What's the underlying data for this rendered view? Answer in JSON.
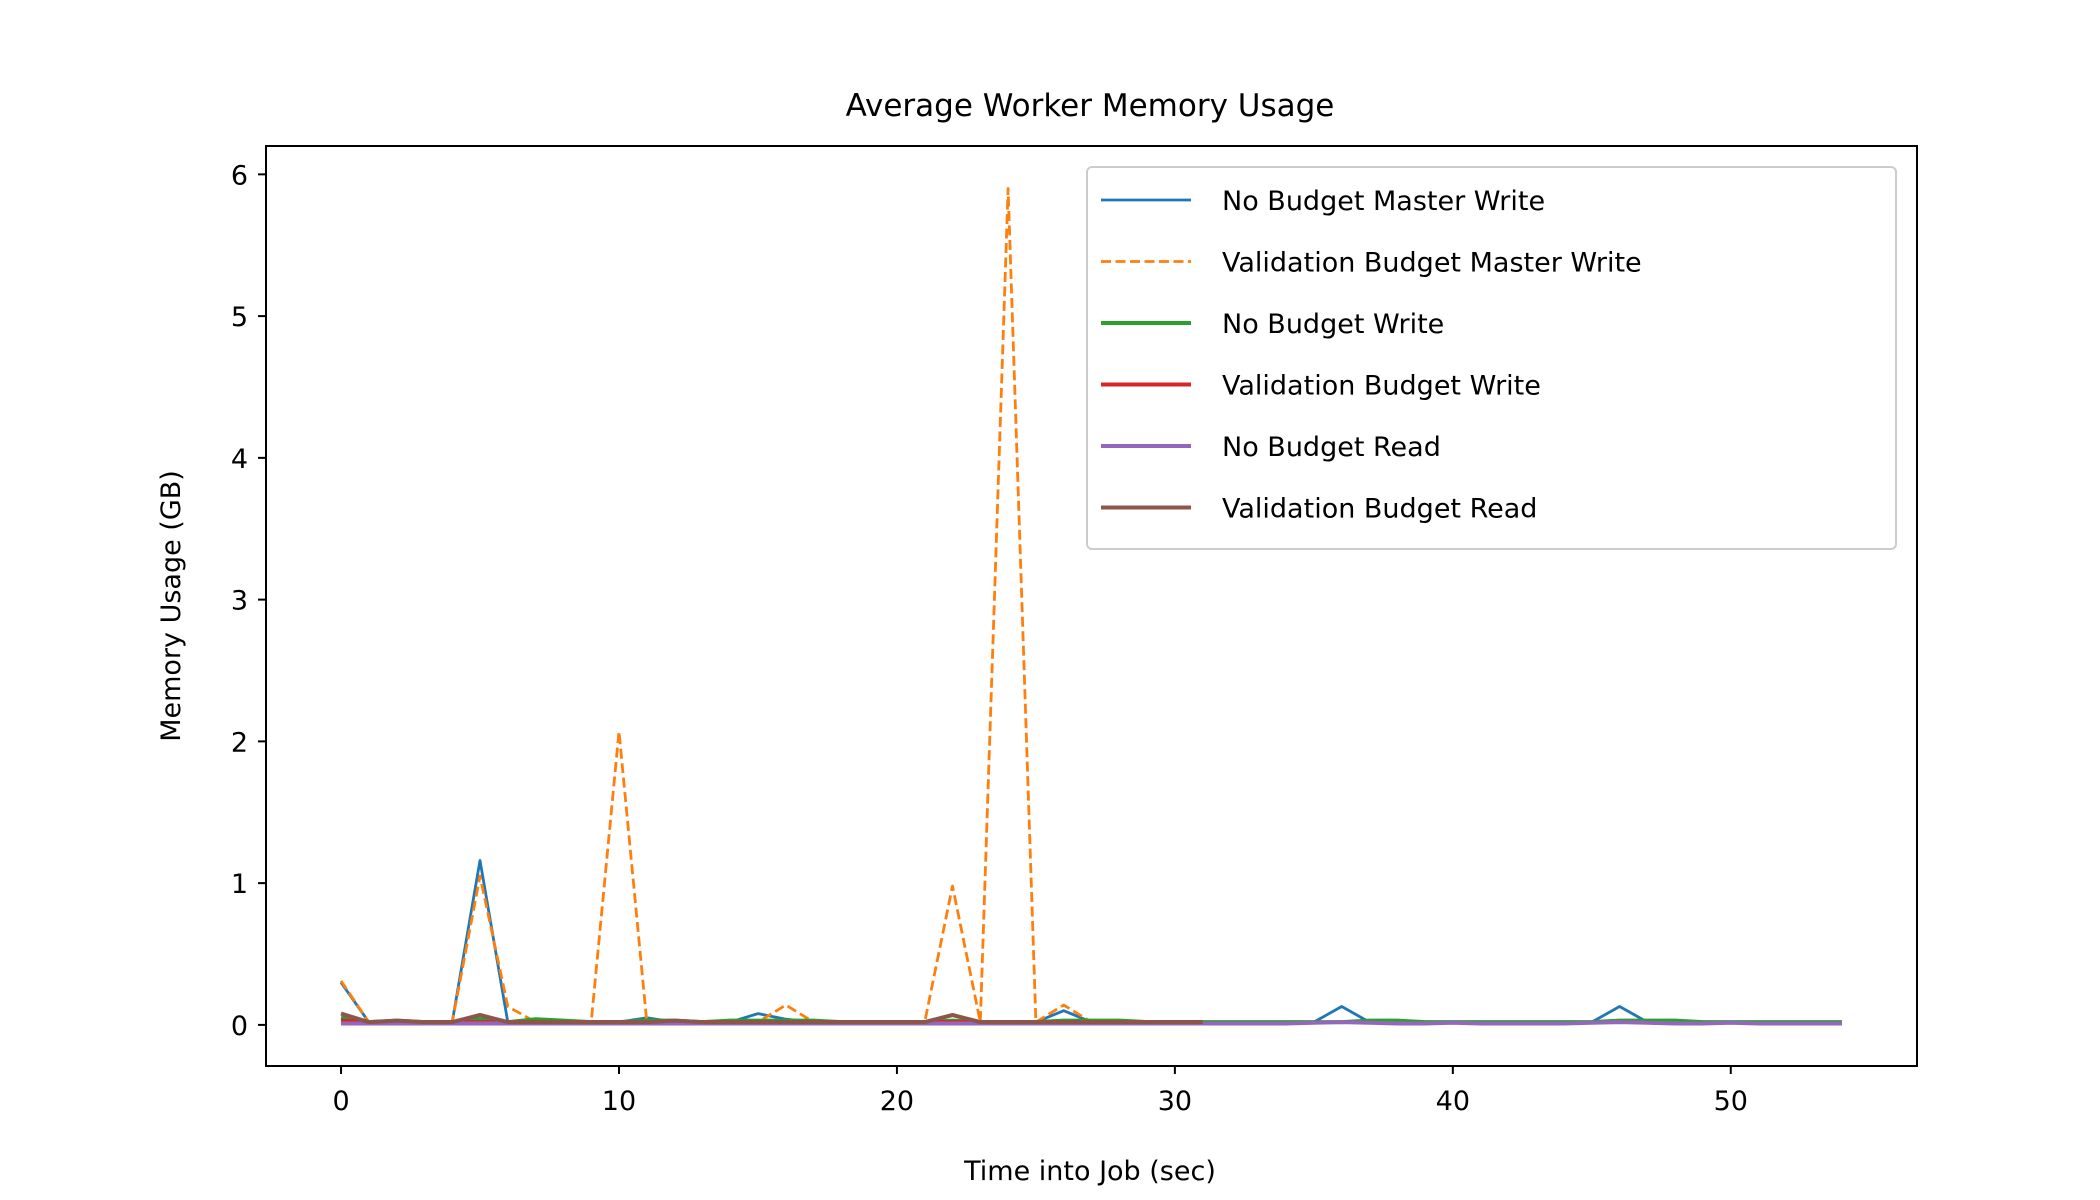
{
  "chart_data": {
    "type": "line",
    "title": "Average Worker Memory Usage",
    "xlabel": "Time into Job (sec)",
    "ylabel": "Memory Usage (GB)",
    "xlim": [
      -2.7,
      56.7
    ],
    "ylim": [
      -0.29,
      6.2
    ],
    "xticks": [
      0,
      10,
      20,
      30,
      40,
      50
    ],
    "yticks": [
      0,
      1,
      2,
      3,
      4,
      5,
      6
    ],
    "grid": false,
    "legend_position": "upper right",
    "series": [
      {
        "name": "No Budget Master Write",
        "color": "#1f77b4",
        "dash": "solid",
        "x": [
          0,
          1,
          2,
          3,
          4,
          5,
          6,
          7,
          8,
          9,
          10,
          11,
          12,
          13,
          14,
          15,
          16,
          17,
          18,
          19,
          20,
          21,
          22,
          23,
          24,
          25,
          26,
          27,
          28,
          29,
          30,
          31,
          32,
          33,
          34,
          35,
          36,
          37,
          38,
          39,
          40,
          41,
          42,
          43,
          44,
          45,
          46,
          47,
          48,
          49,
          50,
          51,
          52,
          53,
          54
        ],
        "y": [
          0.3,
          0.02,
          0.02,
          0.02,
          0.02,
          1.16,
          0.02,
          0.02,
          0.02,
          0.02,
          0.02,
          0.05,
          0.02,
          0.02,
          0.02,
          0.08,
          0.04,
          0.02,
          0.02,
          0.02,
          0.02,
          0.02,
          0.02,
          0.02,
          0.02,
          0.02,
          0.1,
          0.02,
          0.02,
          0.02,
          0.02,
          0.02,
          0.02,
          0.02,
          0.02,
          0.02,
          0.13,
          0.02,
          0.02,
          0.02,
          0.02,
          0.02,
          0.02,
          0.02,
          0.02,
          0.02,
          0.13,
          0.02,
          0.02,
          0.02,
          0.02,
          0.02,
          0.02,
          0.02,
          0.02
        ]
      },
      {
        "name": "Validation Budget Master Write",
        "color": "#ff7f0e",
        "dash": "dashed",
        "x": [
          0,
          1,
          2,
          3,
          4,
          5,
          6,
          7,
          8,
          9,
          10,
          11,
          12,
          13,
          14,
          15,
          16,
          17,
          18,
          19,
          20,
          21,
          22,
          23,
          24,
          25,
          26,
          27,
          28,
          29,
          30,
          31
        ],
        "y": [
          0.31,
          0.02,
          0.02,
          0.02,
          0.02,
          1.05,
          0.13,
          0.02,
          0.02,
          0.02,
          2.07,
          0.02,
          0.02,
          0.02,
          0.02,
          0.02,
          0.14,
          0.02,
          0.02,
          0.02,
          0.02,
          0.02,
          0.98,
          0.02,
          5.9,
          0.02,
          0.14,
          0.02,
          0.02,
          0.02,
          0.02,
          0.02
        ]
      },
      {
        "name": "No Budget Write",
        "color": "#2ca02c",
        "dash": "solid",
        "x": [
          0,
          1,
          2,
          3,
          4,
          5,
          6,
          7,
          8,
          9,
          10,
          11,
          12,
          13,
          14,
          15,
          16,
          17,
          18,
          19,
          20,
          21,
          22,
          23,
          24,
          25,
          26,
          27,
          28,
          29,
          30,
          31,
          32,
          33,
          34,
          35,
          36,
          37,
          38,
          39,
          40,
          41,
          42,
          43,
          44,
          45,
          46,
          47,
          48,
          49,
          50,
          51,
          52,
          53,
          54
        ],
        "y": [
          0.05,
          0.02,
          0.03,
          0.02,
          0.02,
          0.04,
          0.02,
          0.04,
          0.03,
          0.02,
          0.02,
          0.03,
          0.03,
          0.02,
          0.03,
          0.03,
          0.03,
          0.03,
          0.02,
          0.02,
          0.02,
          0.02,
          0.03,
          0.02,
          0.02,
          0.02,
          0.03,
          0.03,
          0.03,
          0.02,
          0.02,
          0.02,
          0.02,
          0.02,
          0.02,
          0.02,
          0.02,
          0.03,
          0.03,
          0.02,
          0.02,
          0.02,
          0.02,
          0.02,
          0.02,
          0.02,
          0.03,
          0.03,
          0.03,
          0.02,
          0.02,
          0.02,
          0.02,
          0.02,
          0.02
        ]
      },
      {
        "name": "Validation Budget Write",
        "color": "#d62728",
        "dash": "solid",
        "x": [
          0,
          1,
          2,
          3,
          4,
          5,
          6,
          7,
          8,
          9,
          10,
          11,
          12,
          13,
          14,
          15,
          16,
          17,
          18,
          19,
          20,
          21,
          22,
          23,
          24,
          25,
          26,
          27,
          28,
          29,
          30,
          31
        ],
        "y": [
          0.03,
          0.02,
          0.02,
          0.02,
          0.02,
          0.02,
          0.02,
          0.02,
          0.02,
          0.02,
          0.02,
          0.02,
          0.02,
          0.02,
          0.02,
          0.02,
          0.02,
          0.02,
          0.02,
          0.02,
          0.02,
          0.02,
          0.02,
          0.02,
          0.02,
          0.02,
          0.02,
          0.02,
          0.02,
          0.02,
          0.02,
          0.02
        ]
      },
      {
        "name": "No Budget Read",
        "color": "#9467bd",
        "dash": "solid",
        "x": [
          0,
          1,
          2,
          3,
          4,
          5,
          6,
          7,
          8,
          9,
          10,
          11,
          12,
          13,
          14,
          15,
          16,
          17,
          18,
          19,
          20,
          21,
          22,
          23,
          24,
          25,
          26,
          27,
          28,
          29,
          30,
          31,
          32,
          33,
          34,
          35,
          36,
          37,
          38,
          39,
          40,
          41,
          42,
          43,
          44,
          45,
          46,
          47,
          48,
          49,
          50,
          51,
          52,
          53,
          54
        ],
        "y": [
          0.01,
          0.01,
          0.01,
          0.01,
          0.01,
          0.01,
          0.01,
          0.01,
          0.01,
          0.01,
          0.01,
          0.01,
          0.01,
          0.01,
          0.01,
          0.01,
          0.01,
          0.01,
          0.01,
          0.01,
          0.01,
          0.01,
          0.01,
          0.01,
          0.01,
          0.01,
          0.01,
          0.01,
          0.01,
          0.01,
          0.01,
          0.01,
          0.01,
          0.01,
          0.01,
          0.015,
          0.02,
          0.015,
          0.01,
          0.01,
          0.015,
          0.01,
          0.01,
          0.01,
          0.01,
          0.015,
          0.02,
          0.015,
          0.01,
          0.01,
          0.015,
          0.01,
          0.01,
          0.01,
          0.01
        ]
      },
      {
        "name": "Validation Budget Read",
        "color": "#8c564b",
        "dash": "solid",
        "x": [
          0,
          1,
          2,
          3,
          4,
          5,
          6,
          7,
          8,
          9,
          10,
          11,
          12,
          13,
          14,
          15,
          16,
          17,
          18,
          19,
          20,
          21,
          22,
          23,
          24,
          25,
          26,
          27,
          28,
          29,
          30,
          31
        ],
        "y": [
          0.08,
          0.02,
          0.03,
          0.02,
          0.02,
          0.07,
          0.02,
          0.02,
          0.02,
          0.02,
          0.02,
          0.02,
          0.03,
          0.02,
          0.02,
          0.02,
          0.02,
          0.02,
          0.02,
          0.02,
          0.02,
          0.02,
          0.07,
          0.02,
          0.02,
          0.02,
          0.02,
          0.02,
          0.02,
          0.02,
          0.02,
          0.02
        ]
      }
    ]
  }
}
